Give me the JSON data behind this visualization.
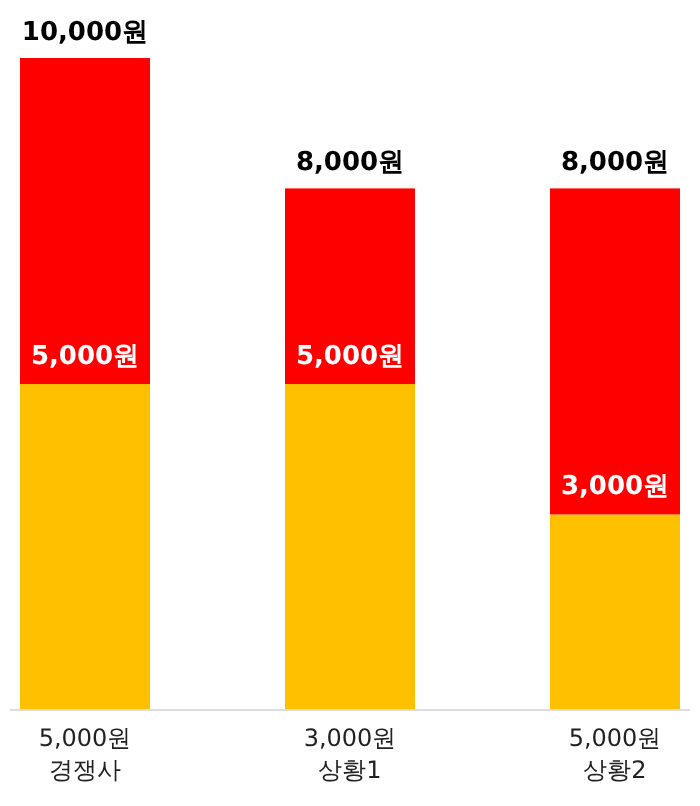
{
  "chart_data": {
    "type": "bar",
    "stacked": true,
    "categories": [
      "5,000원\n경쟁사",
      "3,000원\n상황1",
      "5,000원\n상황2"
    ],
    "series": [
      {
        "color": "#ffc000",
        "values": [
          5000,
          5000,
          3000
        ],
        "value_labels": [
          "5,000원",
          "5,000원",
          "3,000원"
        ]
      },
      {
        "color": "#ff0000",
        "values": [
          5000,
          3000,
          5000
        ]
      }
    ],
    "totals": [
      "10,000원",
      "8,000원",
      "8,000원"
    ]
  }
}
